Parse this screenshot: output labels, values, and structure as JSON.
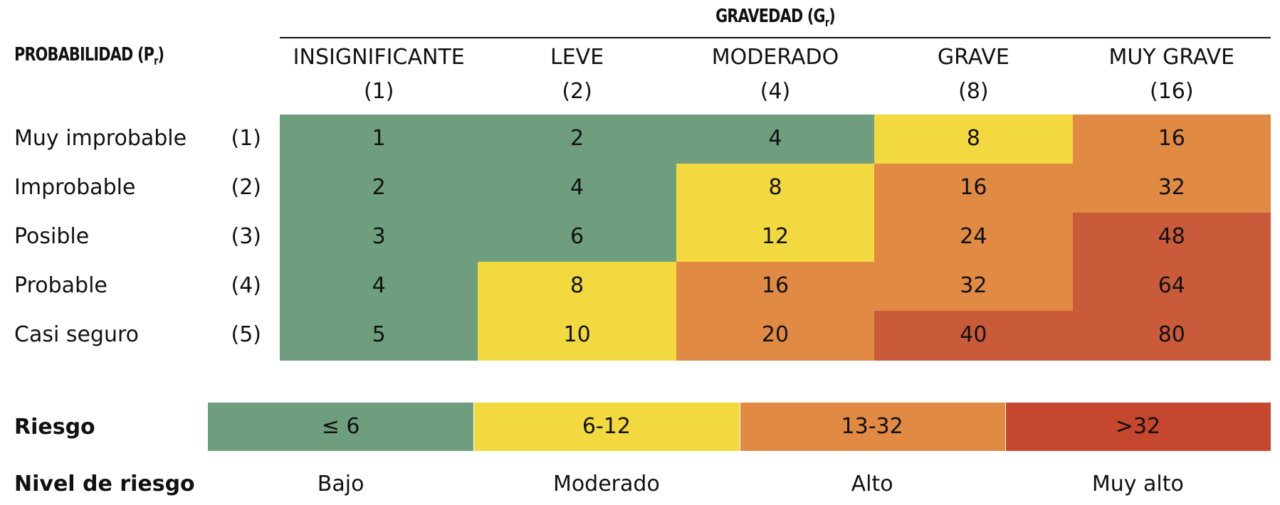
{
  "matrix": {
    "title": {
      "text": "GRAVEDAD (G",
      "subscript": "r",
      "suffix": ")"
    },
    "row_header": {
      "text": "PROBABILIDAD (P",
      "subscript": "r",
      "suffix": ")"
    },
    "columns": [
      {
        "label": "INSIGNIFICANTE",
        "weight": "(1)"
      },
      {
        "label": "LEVE",
        "weight": "(2)"
      },
      {
        "label": "MODERADO",
        "weight": "(4)"
      },
      {
        "label": "GRAVE",
        "weight": "(8)"
      },
      {
        "label": "MUY GRAVE",
        "weight": "(16)"
      }
    ],
    "rows": [
      {
        "label": "Muy improbable",
        "weight": "(1)",
        "cells": [
          {
            "value": 1,
            "color": "#6e9e7e"
          },
          {
            "value": 2,
            "color": "#6e9e7e"
          },
          {
            "value": 4,
            "color": "#6e9e7e"
          },
          {
            "value": 8,
            "color": "#f3d940"
          },
          {
            "value": 16,
            "color": "#e08a43"
          }
        ]
      },
      {
        "label": "Improbable",
        "weight": "(2)",
        "cells": [
          {
            "value": 2,
            "color": "#6e9e7e"
          },
          {
            "value": 4,
            "color": "#6e9e7e"
          },
          {
            "value": 8,
            "color": "#f3d940"
          },
          {
            "value": 16,
            "color": "#e08a43"
          },
          {
            "value": 32,
            "color": "#e08a43"
          }
        ]
      },
      {
        "label": "Posible",
        "weight": "(3)",
        "cells": [
          {
            "value": 3,
            "color": "#6e9e7e"
          },
          {
            "value": 6,
            "color": "#6e9e7e"
          },
          {
            "value": 12,
            "color": "#f3d940"
          },
          {
            "value": 24,
            "color": "#e08a43"
          },
          {
            "value": 48,
            "color": "#c95b3b"
          }
        ]
      },
      {
        "label": "Probable",
        "weight": "(4)",
        "cells": [
          {
            "value": 4,
            "color": "#6e9e7e"
          },
          {
            "value": 8,
            "color": "#f3d940"
          },
          {
            "value": 16,
            "color": "#e08a43"
          },
          {
            "value": 32,
            "color": "#e08a43"
          },
          {
            "value": 64,
            "color": "#c95b3b"
          }
        ]
      },
      {
        "label": "Casi seguro",
        "weight": "(5)",
        "cells": [
          {
            "value": 5,
            "color": "#6e9e7e"
          },
          {
            "value": 10,
            "color": "#f3d940"
          },
          {
            "value": 20,
            "color": "#e08a43"
          },
          {
            "value": 40,
            "color": "#c95b3b"
          },
          {
            "value": 80,
            "color": "#c95b3b"
          }
        ]
      }
    ]
  },
  "legend": {
    "label": "Riesgo",
    "level_label": "Nivel de riesgo",
    "segments": [
      {
        "range": "≤ 6",
        "level": "Bajo",
        "color": "#6e9e7e"
      },
      {
        "range": "6-12",
        "level": "Moderado",
        "color": "#f3d940"
      },
      {
        "range": "13-32",
        "level": "Alto",
        "color": "#e08a43"
      },
      {
        "range": ">32",
        "level": "Muy alto",
        "color": "#c4472e"
      }
    ]
  }
}
